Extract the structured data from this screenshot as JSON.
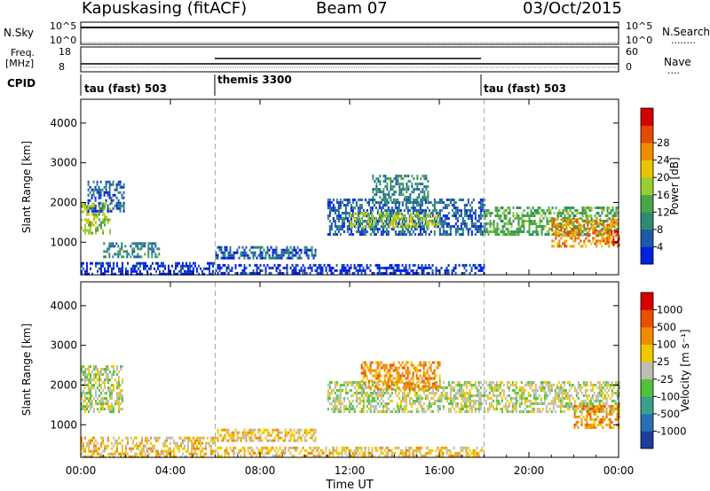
{
  "header": {
    "station": "Kapuskasing (fitACF)",
    "beam": "Beam 07",
    "date": "03/Oct/2015"
  },
  "side_labels": {
    "nsky": "N.Sky",
    "nsky_hi": "10^5",
    "nsky_lo": "10^0",
    "nsearch": "N.Search",
    "nsearch_hi": "10^5",
    "nsearch_lo": "10^0",
    "freq": "Freq.",
    "freq_unit": "[MHz]",
    "freq_hi": "18",
    "freq_lo": "8",
    "nave": "Nave",
    "nave_hi": "60",
    "nave_lo": "0",
    "cpid": "CPID",
    "dots": "........",
    "dots_short": "...."
  },
  "cpid_segments": [
    {
      "label": "tau (fast) 503",
      "start_hour": 0
    },
    {
      "label": "themis 3300",
      "start_hour": 6
    },
    {
      "label": "tau (fast) 503",
      "start_hour": 18
    }
  ],
  "chart_data": [
    {
      "type": "heatmap",
      "panel": "power",
      "ylabel": "Slant Range [km]",
      "xlabel": "",
      "xlim": [
        0,
        24
      ],
      "ylim": [
        180,
        4600
      ],
      "x_ticks": [
        "00:00",
        "04:00",
        "08:00",
        "12:00",
        "16:00",
        "20:00",
        "00:00"
      ],
      "y_ticks": [
        1000,
        2000,
        3000,
        4000
      ],
      "colorbar": {
        "label": "Power [dB]",
        "ticks": [
          "4",
          "8",
          "12",
          "16",
          "20",
          "24",
          "28"
        ],
        "colors": [
          "#0022dd",
          "#1e5aa8",
          "#2f8a73",
          "#4aa64a",
          "#9acd32",
          "#e6c400",
          "#f08c00",
          "#e24a00",
          "#d40000"
        ]
      },
      "echo_regions": [
        {
          "x0": 0.0,
          "x1": 1.3,
          "y0": 1250,
          "y1": 2000,
          "level": 4
        },
        {
          "x0": 0.3,
          "x1": 1.9,
          "y0": 1800,
          "y1": 2550,
          "level": 1
        },
        {
          "x0": 0.0,
          "x1": 6.0,
          "y0": 200,
          "y1": 500,
          "level": 0
        },
        {
          "x0": 1.0,
          "x1": 3.5,
          "y0": 600,
          "y1": 1000,
          "level": 2
        },
        {
          "x0": 6.0,
          "x1": 18.0,
          "y0": 200,
          "y1": 450,
          "level": 0
        },
        {
          "x0": 6.0,
          "x1": 10.5,
          "y0": 600,
          "y1": 900,
          "level": 1
        },
        {
          "x0": 11.0,
          "x1": 18.0,
          "y0": 1200,
          "y1": 2100,
          "level": 1
        },
        {
          "x0": 12.0,
          "x1": 16.0,
          "y0": 1400,
          "y1": 1750,
          "level": 4
        },
        {
          "x0": 13.0,
          "x1": 15.5,
          "y0": 2000,
          "y1": 2700,
          "level": 2
        },
        {
          "x0": 18.0,
          "x1": 24.0,
          "y0": 1200,
          "y1": 1900,
          "level": 3
        },
        {
          "x0": 21.0,
          "x1": 24.0,
          "y0": 900,
          "y1": 1600,
          "level": 6
        },
        {
          "x0": 23.5,
          "x1": 24.0,
          "y0": 900,
          "y1": 1300,
          "level": 8
        }
      ]
    },
    {
      "type": "heatmap",
      "panel": "velocity",
      "ylabel": "Slant Range [km]",
      "xlabel": "Time UT",
      "xlim": [
        0,
        24
      ],
      "ylim": [
        180,
        4600
      ],
      "x_ticks": [
        "00:00",
        "04:00",
        "08:00",
        "12:00",
        "16:00",
        "20:00",
        "00:00"
      ],
      "y_ticks": [
        1000,
        2000,
        3000,
        4000
      ],
      "colorbar": {
        "label": "Velocity [m s⁻¹]",
        "ticks": [
          "1000",
          "500",
          "100",
          "25",
          "-25",
          "-100",
          "-500",
          "-1000"
        ],
        "colors": [
          "#1d3d9c",
          "#2a6fb5",
          "#3aa08a",
          "#52c23a",
          "#bdbdb5",
          "#f0c800",
          "#f08c00",
          "#e85000",
          "#d60000"
        ]
      },
      "echo_regions": [
        {
          "x0": 0.0,
          "x1": 1.9,
          "y0": 1300,
          "y1": 2500,
          "level": 4
        },
        {
          "x0": 0.0,
          "x1": 6.0,
          "y0": 200,
          "y1": 700,
          "level": 5
        },
        {
          "x0": 6.0,
          "x1": 18.0,
          "y0": 200,
          "y1": 450,
          "level": 5
        },
        {
          "x0": 6.0,
          "x1": 10.5,
          "y0": 600,
          "y1": 900,
          "level": 5
        },
        {
          "x0": 11.0,
          "x1": 24.0,
          "y0": 1300,
          "y1": 2100,
          "level": 4
        },
        {
          "x0": 12.5,
          "x1": 16.0,
          "y0": 1900,
          "y1": 2600,
          "level": 6
        },
        {
          "x0": 22.0,
          "x1": 24.0,
          "y0": 900,
          "y1": 1500,
          "level": 6
        }
      ]
    }
  ]
}
